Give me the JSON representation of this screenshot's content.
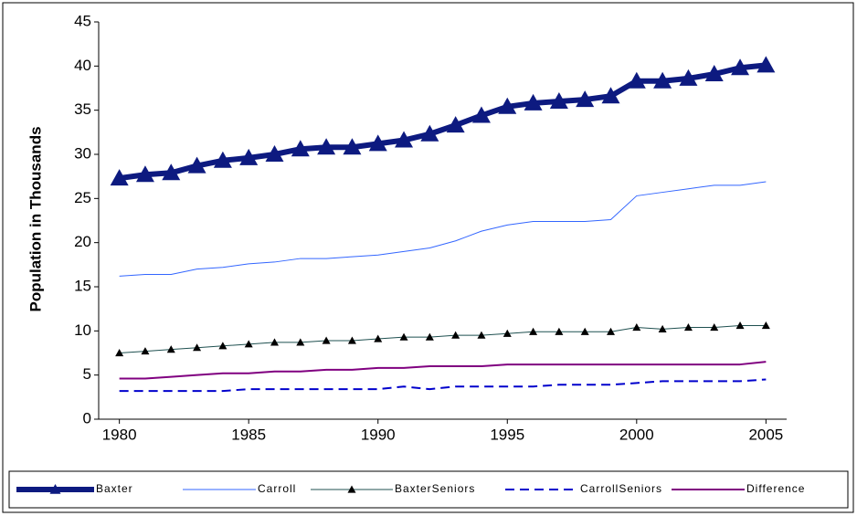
{
  "chart_data": {
    "type": "line",
    "y_label": "Population in Thousands",
    "x": [
      1980,
      1981,
      1982,
      1983,
      1984,
      1985,
      1986,
      1987,
      1988,
      1989,
      1990,
      1991,
      1992,
      1993,
      1994,
      1995,
      1996,
      1997,
      1998,
      1999,
      2000,
      2001,
      2002,
      2003,
      2004,
      2005
    ],
    "xlim": [
      1979.2,
      2005.8
    ],
    "xticks": [
      1980,
      1985,
      1990,
      1995,
      2000,
      2005
    ],
    "ylim": [
      0,
      45
    ],
    "yticks": [
      0,
      5,
      10,
      15,
      20,
      25,
      30,
      35,
      40,
      45
    ],
    "grid": false,
    "legend": "bottom",
    "series": [
      {
        "name": "Baxter",
        "color": "#0d1a80",
        "line_width": 6,
        "marker": "large-triangle",
        "marker_color": "#0d1a80",
        "values": [
          27.3,
          27.7,
          27.9,
          28.7,
          29.3,
          29.6,
          30.0,
          30.6,
          30.8,
          30.8,
          31.2,
          31.6,
          32.3,
          33.3,
          34.4,
          35.4,
          35.8,
          36.0,
          36.2,
          36.6,
          38.3,
          38.3,
          38.6,
          39.1,
          39.8,
          40.1
        ]
      },
      {
        "name": "Carroll",
        "color": "#3366ff",
        "line_width": 1,
        "marker": "none",
        "values": [
          16.2,
          16.4,
          16.4,
          17.0,
          17.2,
          17.6,
          17.8,
          18.2,
          18.2,
          18.4,
          18.6,
          19.0,
          19.4,
          20.2,
          21.3,
          22.0,
          22.4,
          22.4,
          22.4,
          22.6,
          25.3,
          25.7,
          26.1,
          26.5,
          26.5,
          26.9
        ]
      },
      {
        "name": "BaxterSeniors",
        "color": "#1f5050",
        "line_width": 1,
        "marker": "triangle",
        "marker_color": "#000000",
        "values": [
          7.5,
          7.7,
          7.9,
          8.1,
          8.3,
          8.5,
          8.7,
          8.7,
          8.9,
          8.9,
          9.1,
          9.3,
          9.3,
          9.5,
          9.5,
          9.7,
          9.9,
          9.9,
          9.9,
          9.9,
          10.4,
          10.2,
          10.4,
          10.4,
          10.6,
          10.6
        ]
      },
      {
        "name": "CarrollSeniors",
        "color": "#0000cc",
        "line_width": 2,
        "marker": "none",
        "dash": true,
        "values": [
          3.2,
          3.2,
          3.2,
          3.2,
          3.2,
          3.4,
          3.4,
          3.4,
          3.4,
          3.4,
          3.4,
          3.7,
          3.4,
          3.7,
          3.7,
          3.7,
          3.7,
          3.9,
          3.9,
          3.9,
          4.1,
          4.3,
          4.3,
          4.3,
          4.3,
          4.5
        ]
      },
      {
        "name": "Difference",
        "color": "#800080",
        "line_width": 2,
        "marker": "none",
        "values": [
          4.6,
          4.6,
          4.8,
          5.0,
          5.2,
          5.2,
          5.4,
          5.4,
          5.6,
          5.6,
          5.8,
          5.8,
          6.0,
          6.0,
          6.0,
          6.2,
          6.2,
          6.2,
          6.2,
          6.2,
          6.2,
          6.2,
          6.2,
          6.2,
          6.2,
          6.5
        ]
      }
    ]
  }
}
